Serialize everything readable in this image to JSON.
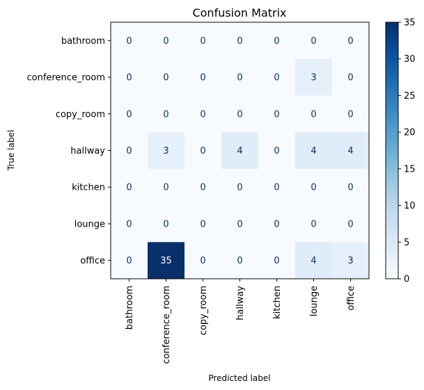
{
  "chart_data": {
    "type": "heatmap",
    "title": "Confusion Matrix",
    "xlabel": "Predicted label",
    "ylabel": "True label",
    "x_categories": [
      "bathroom",
      "conference_room",
      "copy_room",
      "hallway",
      "kitchen",
      "lounge",
      "office"
    ],
    "y_categories": [
      "bathroom",
      "conference_room",
      "copy_room",
      "hallway",
      "kitchen",
      "lounge",
      "office"
    ],
    "values": [
      [
        0,
        0,
        0,
        0,
        0,
        0,
        0
      ],
      [
        0,
        0,
        0,
        0,
        0,
        3,
        0
      ],
      [
        0,
        0,
        0,
        0,
        0,
        0,
        0
      ],
      [
        0,
        3,
        0,
        4,
        0,
        4,
        4
      ],
      [
        0,
        0,
        0,
        0,
        0,
        0,
        0
      ],
      [
        0,
        0,
        0,
        0,
        0,
        0,
        0
      ],
      [
        0,
        35,
        0,
        0,
        0,
        4,
        3
      ]
    ],
    "colormap": "Blues",
    "colorbar": {
      "range": [
        0,
        35
      ],
      "ticks": [
        0,
        5,
        10,
        15,
        20,
        25,
        30,
        35
      ]
    },
    "text_color_light_cells": "#08306b",
    "text_color_dark_cells": "#ffffff"
  }
}
